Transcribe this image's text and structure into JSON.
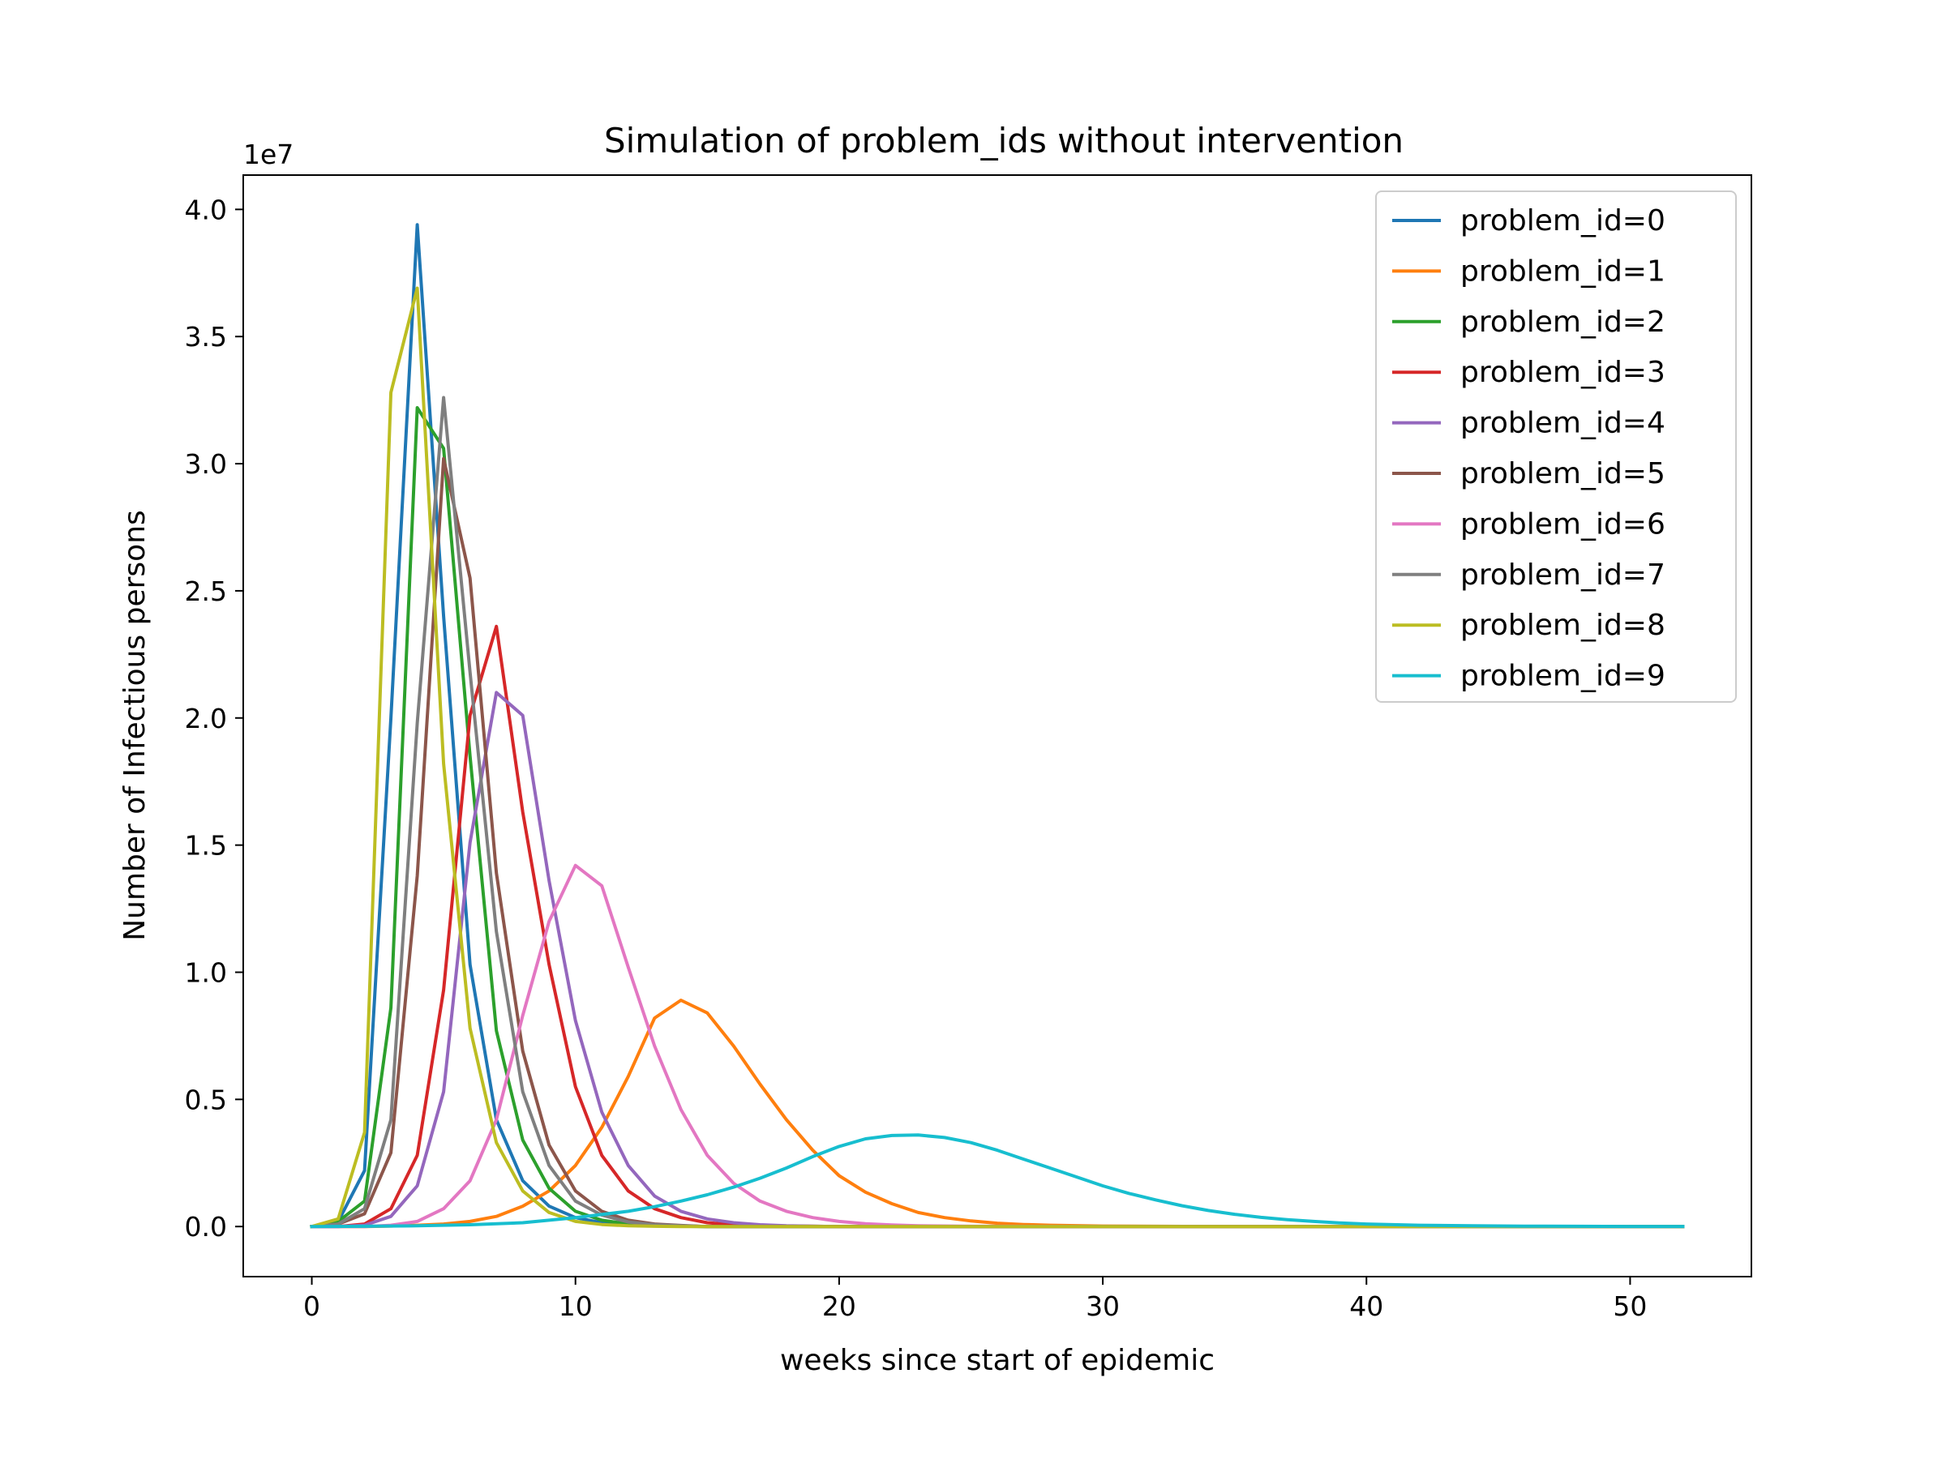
{
  "chart_data": {
    "type": "line",
    "title": "Simulation of problem_ids without intervention",
    "xlabel": "weeks since start of epidemic",
    "ylabel": "Number of Infectious persons",
    "y_offset_label": "1e7",
    "y_scale": 10000000,
    "xlim": [
      -2.6,
      54.6
    ],
    "ylim": [
      -1.97,
      41.35
    ],
    "x_ticks": [
      0,
      10,
      20,
      30,
      40,
      50
    ],
    "x_tick_labels": [
      "0",
      "10",
      "20",
      "30",
      "40",
      "50"
    ],
    "y_ticks": [
      0,
      5,
      10,
      15,
      20,
      25,
      30,
      35,
      40
    ],
    "y_tick_labels": [
      "0.0",
      "0.5",
      "1.0",
      "1.5",
      "2.0",
      "2.5",
      "3.0",
      "3.5",
      "4.0"
    ],
    "grid": false,
    "legend_position": "top-right",
    "series": [
      {
        "name": "problem_id=0",
        "color": "#1f77b4",
        "x": [
          0,
          1,
          2,
          3,
          4,
          5,
          6,
          7,
          8,
          9,
          10,
          11,
          12,
          13,
          14,
          15,
          16,
          20,
          30,
          40,
          52
        ],
        "y": [
          0,
          0.2,
          2.2,
          20,
          39.4,
          24,
          10.3,
          4.2,
          1.8,
          0.8,
          0.35,
          0.15,
          0.06,
          0.03,
          0.01,
          0,
          0,
          0,
          0,
          0,
          0
        ]
      },
      {
        "name": "problem_id=1",
        "color": "#ff7f0e",
        "x": [
          0,
          1,
          2,
          3,
          4,
          5,
          6,
          7,
          8,
          9,
          10,
          11,
          12,
          13,
          14,
          15,
          16,
          17,
          18,
          19,
          20,
          21,
          22,
          23,
          24,
          25,
          26,
          27,
          28,
          30,
          35,
          40,
          52
        ],
        "y": [
          0,
          0,
          0,
          0.02,
          0.05,
          0.1,
          0.2,
          0.4,
          0.8,
          1.4,
          2.4,
          3.9,
          5.9,
          8.2,
          8.9,
          8.4,
          7.1,
          5.6,
          4.2,
          3.0,
          2.0,
          1.35,
          0.9,
          0.55,
          0.35,
          0.22,
          0.13,
          0.08,
          0.05,
          0.02,
          0,
          0,
          0
        ]
      },
      {
        "name": "problem_id=2",
        "color": "#2ca02c",
        "x": [
          0,
          1,
          2,
          3,
          4,
          5,
          6,
          7,
          8,
          9,
          10,
          11,
          12,
          13,
          14,
          15,
          20,
          30,
          40,
          52
        ],
        "y": [
          0,
          0.2,
          1.0,
          8.6,
          32.2,
          30.6,
          18.5,
          7.7,
          3.4,
          1.5,
          0.6,
          0.25,
          0.1,
          0.04,
          0.02,
          0,
          0,
          0,
          0,
          0
        ]
      },
      {
        "name": "problem_id=3",
        "color": "#d62728",
        "x": [
          0,
          1,
          2,
          3,
          4,
          5,
          6,
          7,
          8,
          9,
          10,
          11,
          12,
          13,
          14,
          15,
          16,
          17,
          20,
          30,
          40,
          52
        ],
        "y": [
          0,
          0,
          0.1,
          0.7,
          2.8,
          9.3,
          20.1,
          23.6,
          16.3,
          10.3,
          5.5,
          2.8,
          1.4,
          0.7,
          0.35,
          0.15,
          0.07,
          0.03,
          0,
          0,
          0,
          0
        ]
      },
      {
        "name": "problem_id=4",
        "color": "#9467bd",
        "x": [
          0,
          1,
          2,
          3,
          4,
          5,
          6,
          7,
          8,
          9,
          10,
          11,
          12,
          13,
          14,
          15,
          16,
          17,
          18,
          20,
          30,
          40,
          52
        ],
        "y": [
          0,
          0,
          0.05,
          0.4,
          1.6,
          5.3,
          15.1,
          21.0,
          20.1,
          13.6,
          8.1,
          4.5,
          2.4,
          1.2,
          0.6,
          0.3,
          0.15,
          0.07,
          0.03,
          0,
          0,
          0,
          0
        ]
      },
      {
        "name": "problem_id=5",
        "color": "#8c564b",
        "x": [
          0,
          1,
          2,
          3,
          4,
          5,
          6,
          7,
          8,
          9,
          10,
          11,
          12,
          13,
          14,
          15,
          20,
          30,
          40,
          52
        ],
        "y": [
          0,
          0.1,
          0.5,
          2.9,
          13.8,
          30.2,
          25.5,
          13.9,
          6.9,
          3.2,
          1.4,
          0.6,
          0.25,
          0.1,
          0.04,
          0,
          0,
          0,
          0,
          0
        ]
      },
      {
        "name": "problem_id=6",
        "color": "#e377c2",
        "x": [
          0,
          1,
          2,
          3,
          4,
          5,
          6,
          7,
          8,
          9,
          10,
          11,
          12,
          13,
          14,
          15,
          16,
          17,
          18,
          19,
          20,
          21,
          22,
          23,
          25,
          30,
          40,
          52
        ],
        "y": [
          0,
          0,
          0,
          0.05,
          0.2,
          0.7,
          1.8,
          4.2,
          8.3,
          12.0,
          14.2,
          13.4,
          10.2,
          7.1,
          4.6,
          2.8,
          1.7,
          1.0,
          0.6,
          0.35,
          0.2,
          0.11,
          0.06,
          0.03,
          0.01,
          0,
          0,
          0
        ]
      },
      {
        "name": "problem_id=7",
        "color": "#7f7f7f",
        "x": [
          0,
          1,
          2,
          3,
          4,
          5,
          6,
          7,
          8,
          9,
          10,
          11,
          12,
          13,
          14,
          15,
          20,
          30,
          40,
          52
        ],
        "y": [
          0,
          0.1,
          0.7,
          4.2,
          19.8,
          32.6,
          21.8,
          11.6,
          5.3,
          2.4,
          1.0,
          0.45,
          0.18,
          0.07,
          0.03,
          0,
          0,
          0,
          0,
          0
        ]
      },
      {
        "name": "problem_id=8",
        "color": "#bcbd22",
        "x": [
          0,
          1,
          2,
          3,
          4,
          5,
          6,
          7,
          8,
          9,
          10,
          11,
          12,
          13,
          14,
          20,
          30,
          40,
          52
        ],
        "y": [
          0,
          0.3,
          3.7,
          32.8,
          36.9,
          18.2,
          7.8,
          3.3,
          1.4,
          0.55,
          0.2,
          0.08,
          0.03,
          0.01,
          0,
          0,
          0,
          0,
          0
        ]
      },
      {
        "name": "problem_id=9",
        "color": "#17becf",
        "x": [
          0,
          2,
          4,
          6,
          8,
          10,
          12,
          13,
          14,
          15,
          16,
          17,
          18,
          19,
          20,
          21,
          22,
          23,
          24,
          25,
          26,
          27,
          28,
          29,
          30,
          31,
          32,
          33,
          34,
          35,
          36,
          37,
          38,
          39,
          40,
          42,
          44,
          46,
          48,
          50,
          52
        ],
        "y": [
          0,
          0.01,
          0.03,
          0.07,
          0.15,
          0.35,
          0.6,
          0.78,
          1.0,
          1.25,
          1.55,
          1.9,
          2.3,
          2.75,
          3.15,
          3.45,
          3.58,
          3.6,
          3.5,
          3.3,
          3.0,
          2.65,
          2.3,
          1.95,
          1.6,
          1.3,
          1.05,
          0.82,
          0.63,
          0.48,
          0.36,
          0.27,
          0.2,
          0.14,
          0.1,
          0.05,
          0.03,
          0.015,
          0.008,
          0.004,
          0.002
        ]
      }
    ]
  }
}
